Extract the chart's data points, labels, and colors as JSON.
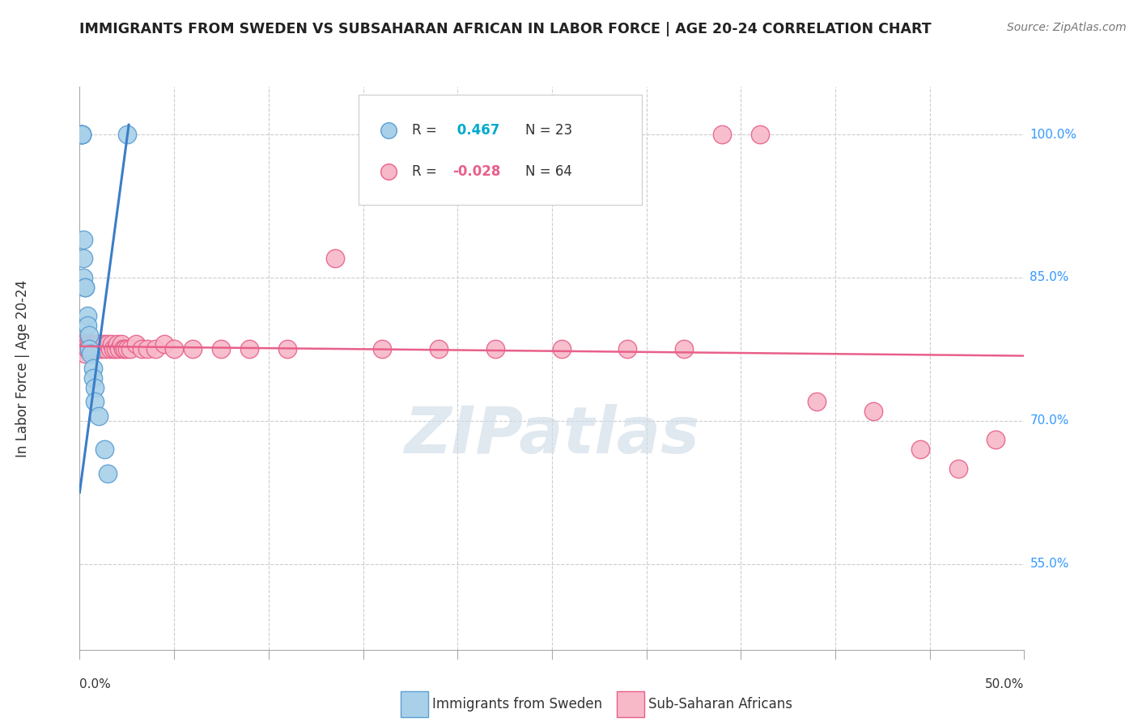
{
  "title": "IMMIGRANTS FROM SWEDEN VS SUBSAHARAN AFRICAN IN LABOR FORCE | AGE 20-24 CORRELATION CHART",
  "source": "Source: ZipAtlas.com",
  "ylabel": "In Labor Force | Age 20-24",
  "yaxis_labels": [
    "100.0%",
    "85.0%",
    "70.0%",
    "55.0%"
  ],
  "yaxis_values": [
    1.0,
    0.85,
    0.7,
    0.55
  ],
  "xlim": [
    0.0,
    0.5
  ],
  "ylim": [
    0.46,
    1.05
  ],
  "legend_label_sweden": "Immigrants from Sweden",
  "legend_label_subsaharan": "Sub-Saharan Africans",
  "sweden_color": "#a8d0e8",
  "subsaharan_color": "#f7b8c8",
  "sweden_edge_color": "#5b9fd4",
  "subsaharan_edge_color": "#e8608a",
  "sweden_line_color": "#3a7dc9",
  "subsaharan_line_color": "#e8608a",
  "watermark": "ZIPatlas",
  "legend_R_sweden": "R =",
  "legend_R_val_sweden": "0.467",
  "legend_N_sweden": "N = 23",
  "legend_R_subsaharan": "R =",
  "legend_R_val_subsaharan": "-0.028",
  "legend_N_subsaharan": "N = 64",
  "sweden_x": [
    0.001,
    0.001,
    0.001,
    0.001,
    0.001,
    0.002,
    0.002,
    0.002,
    0.003,
    0.003,
    0.004,
    0.004,
    0.005,
    0.005,
    0.006,
    0.007,
    0.007,
    0.008,
    0.008,
    0.01,
    0.013,
    0.015,
    0.025
  ],
  "sweden_y": [
    1.0,
    1.0,
    1.0,
    1.0,
    1.0,
    0.89,
    0.87,
    0.85,
    0.84,
    0.84,
    0.81,
    0.8,
    0.79,
    0.775,
    0.77,
    0.755,
    0.745,
    0.735,
    0.72,
    0.705,
    0.67,
    0.645,
    1.0
  ],
  "subsaharan_x": [
    0.001,
    0.001,
    0.001,
    0.002,
    0.002,
    0.002,
    0.003,
    0.003,
    0.003,
    0.004,
    0.004,
    0.004,
    0.005,
    0.005,
    0.006,
    0.006,
    0.007,
    0.007,
    0.008,
    0.008,
    0.009,
    0.009,
    0.01,
    0.01,
    0.011,
    0.012,
    0.013,
    0.014,
    0.015,
    0.016,
    0.017,
    0.018,
    0.019,
    0.02,
    0.021,
    0.022,
    0.023,
    0.024,
    0.025,
    0.027,
    0.03,
    0.033,
    0.036,
    0.04,
    0.045,
    0.05,
    0.06,
    0.075,
    0.09,
    0.11,
    0.135,
    0.16,
    0.19,
    0.22,
    0.255,
    0.29,
    0.32,
    0.34,
    0.36,
    0.39,
    0.42,
    0.445,
    0.465,
    0.485
  ],
  "subsaharan_y": [
    0.775,
    0.775,
    0.78,
    0.775,
    0.78,
    0.775,
    0.78,
    0.775,
    0.77,
    0.775,
    0.78,
    0.775,
    0.78,
    0.775,
    0.78,
    0.775,
    0.775,
    0.78,
    0.78,
    0.775,
    0.78,
    0.775,
    0.78,
    0.775,
    0.78,
    0.775,
    0.78,
    0.775,
    0.78,
    0.775,
    0.78,
    0.775,
    0.775,
    0.78,
    0.775,
    0.78,
    0.775,
    0.775,
    0.775,
    0.775,
    0.78,
    0.775,
    0.775,
    0.775,
    0.78,
    0.775,
    0.775,
    0.775,
    0.775,
    0.775,
    0.87,
    0.775,
    0.775,
    0.775,
    0.775,
    0.775,
    0.775,
    1.0,
    1.0,
    0.72,
    0.71,
    0.67,
    0.65,
    0.68
  ],
  "sweden_trend_x": [
    0.0,
    0.026
  ],
  "sweden_trend_y": [
    0.625,
    1.01
  ],
  "subsaharan_trend_x": [
    0.0,
    0.5
  ],
  "subsaharan_trend_y": [
    0.778,
    0.768
  ]
}
